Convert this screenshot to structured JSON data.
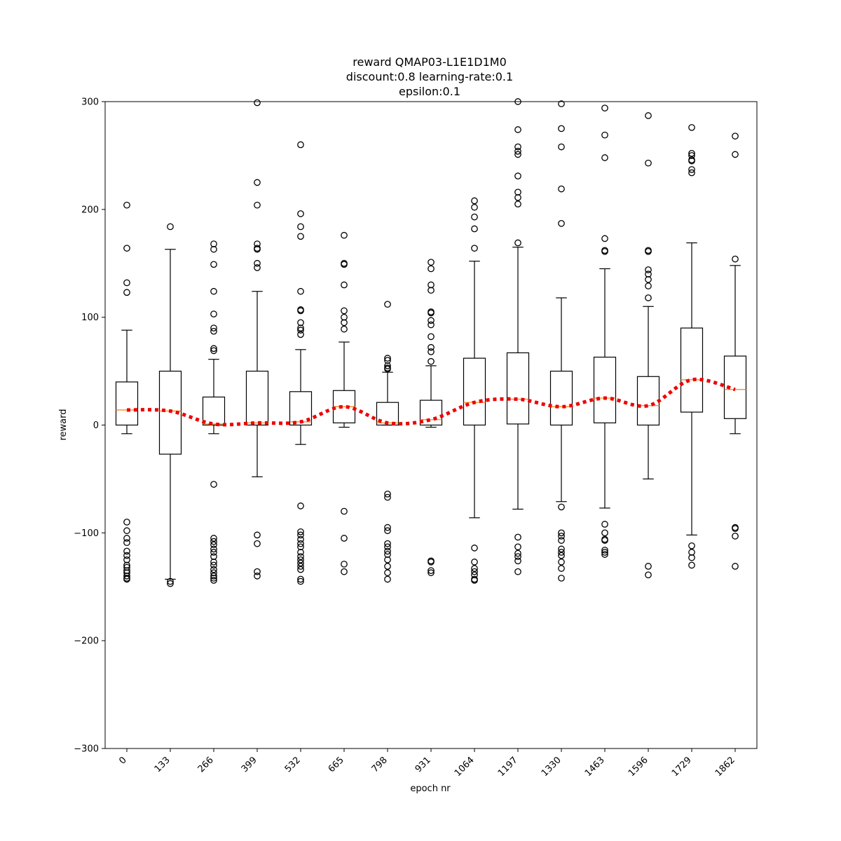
{
  "chart_data": {
    "type": "box",
    "title": [
      "reward QMAP03-L1E1D1M0",
      "discount:0.8 learning-rate:0.1",
      "epsilon:0.1"
    ],
    "xlabel": "epoch nr",
    "ylabel": "reward",
    "ylim": [
      -300,
      300
    ],
    "yticks": [
      300,
      200,
      100,
      0,
      -100,
      -200,
      -300
    ],
    "ytick_labels": [
      "300",
      "200",
      "100",
      "0",
      "−100",
      "−200",
      "−300"
    ],
    "categories": [
      "0",
      "133",
      "266",
      "399",
      "532",
      "665",
      "798",
      "931",
      "1064",
      "1197",
      "1330",
      "1463",
      "1596",
      "1729",
      "1862"
    ],
    "boxes": [
      {
        "whislo": -8,
        "q1": 0,
        "med": 14,
        "q3": 40,
        "whishi": 88,
        "fliers": [
          204,
          164,
          132,
          123,
          -90,
          -98,
          -105,
          -109,
          -117,
          -121,
          -125,
          -130,
          -132,
          -135,
          -137,
          -140,
          -142,
          -143
        ]
      },
      {
        "whislo": -143,
        "q1": -27,
        "med": 13,
        "q3": 50,
        "whishi": 163,
        "fliers": [
          184,
          -145,
          -147
        ]
      },
      {
        "whislo": -8,
        "q1": 0,
        "med": 1,
        "q3": 26,
        "whishi": 61,
        "fliers": [
          168,
          163,
          149,
          124,
          103,
          90,
          87,
          71,
          69,
          -55,
          -105,
          -108,
          -111,
          -115,
          -118,
          -122,
          -127,
          -130,
          -134,
          -137,
          -140,
          -142,
          -144
        ]
      },
      {
        "whislo": -48,
        "q1": 0,
        "med": 2,
        "q3": 50,
        "whishi": 124,
        "fliers": [
          299,
          225,
          204,
          168,
          164,
          163,
          150,
          146,
          -102,
          -110,
          -136,
          -140
        ]
      },
      {
        "whislo": -18,
        "q1": 0,
        "med": 3,
        "q3": 31,
        "whishi": 70,
        "fliers": [
          260,
          196,
          184,
          175,
          124,
          107,
          106,
          95,
          90,
          88,
          84,
          -75,
          -99,
          -102,
          -106,
          -110,
          -113,
          -118,
          -122,
          -125,
          -128,
          -131,
          -134,
          -143,
          -145
        ]
      },
      {
        "whislo": -2,
        "q1": 2,
        "med": 17,
        "q3": 32,
        "whishi": 77,
        "fliers": [
          176,
          150,
          149,
          130,
          106,
          100,
          95,
          89,
          -80,
          -105,
          -129,
          -136
        ]
      },
      {
        "whislo": 0,
        "q1": 0,
        "med": 2,
        "q3": 21,
        "whishi": 49,
        "fliers": [
          112,
          62,
          60,
          55,
          53,
          52,
          -64,
          -67,
          -95,
          -98,
          -110,
          -113,
          -117,
          -120,
          -125,
          -131,
          -137,
          -143
        ]
      },
      {
        "whislo": -2,
        "q1": 0,
        "med": 5,
        "q3": 23,
        "whishi": 55,
        "fliers": [
          151,
          145,
          130,
          125,
          105,
          104,
          97,
          93,
          82,
          72,
          68,
          59,
          -126,
          -127,
          -135,
          -137
        ]
      },
      {
        "whislo": -86,
        "q1": 0,
        "med": 21,
        "q3": 62,
        "whishi": 152,
        "fliers": [
          208,
          202,
          193,
          182,
          164,
          -114,
          -127,
          -133,
          -136,
          -139,
          -143,
          -144
        ]
      },
      {
        "whislo": -78,
        "q1": 1,
        "med": 24,
        "q3": 67,
        "whishi": 165,
        "fliers": [
          300,
          274,
          258,
          254,
          251,
          231,
          216,
          211,
          205,
          169,
          -104,
          -113,
          -119,
          -122,
          -126,
          -136
        ]
      },
      {
        "whislo": -71,
        "q1": 0,
        "med": 17,
        "q3": 50,
        "whishi": 118,
        "fliers": [
          298,
          275,
          258,
          219,
          187,
          -76,
          -100,
          -103,
          -107,
          -115,
          -118,
          -121,
          -127,
          -133,
          -142
        ]
      },
      {
        "whislo": -77,
        "q1": 2,
        "med": 25,
        "q3": 63,
        "whishi": 145,
        "fliers": [
          294,
          269,
          248,
          173,
          162,
          161,
          -92,
          -100,
          -106,
          -107,
          -116,
          -118,
          -120
        ]
      },
      {
        "whislo": -50,
        "q1": 0,
        "med": 18,
        "q3": 45,
        "whishi": 110,
        "fliers": [
          287,
          243,
          162,
          161,
          144,
          140,
          135,
          129,
          118,
          -131,
          -139
        ]
      },
      {
        "whislo": -102,
        "q1": 12,
        "med": 42,
        "q3": 90,
        "whishi": 169,
        "fliers": [
          276,
          252,
          250,
          246,
          245,
          237,
          234,
          -112,
          -118,
          -123,
          -130
        ]
      },
      {
        "whislo": -8,
        "q1": 6,
        "med": 33,
        "q3": 64,
        "whishi": 148,
        "fliers": [
          268,
          251,
          154,
          -95,
          -96,
          -103,
          -131
        ]
      }
    ],
    "trend_line": {
      "style": "dotted",
      "color": "#ee0000",
      "values": [
        14,
        13,
        1,
        2,
        3,
        17,
        2,
        5,
        21,
        24,
        17,
        25,
        18,
        42,
        33
      ]
    },
    "colors": {
      "median": "#ff7f0e",
      "box": "#000000",
      "trend": "#ee0000"
    },
    "grid": false,
    "legend": "none"
  }
}
